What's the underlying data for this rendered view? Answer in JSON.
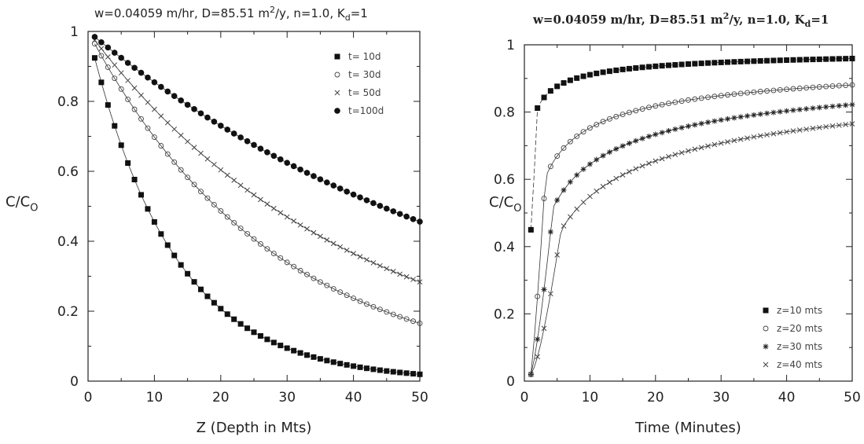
{
  "chart_data": [
    {
      "type": "line",
      "title_parts": [
        "w=0.04059 m/hr, D=85.51 m",
        "2",
        "/y, n=1.0, K",
        "d",
        "=1"
      ],
      "xlabel": "Z (Depth in Mts)",
      "ylabel_main": "C/C",
      "ylabel_sub": "O",
      "xlim": [
        0,
        50
      ],
      "ylim": [
        0,
        1
      ],
      "xticks": [
        "0",
        "10",
        "20",
        "30",
        "40",
        "50"
      ],
      "yticks": [
        "0",
        "0.2",
        "0.4",
        "0.6",
        "0.8",
        "1"
      ],
      "legend_position": "top-right",
      "grid": false,
      "series": [
        {
          "name": "t= 10d",
          "marker": "square",
          "k": 0.0787
        },
        {
          "name": "t= 30d",
          "marker": "circle",
          "k": 0.036
        },
        {
          "name": "t= 50d",
          "marker": "x",
          "k": 0.0252
        },
        {
          "name": "t=100d",
          "marker": "dot",
          "k": 0.0157
        }
      ],
      "x_values": [
        1,
        2,
        3,
        4,
        5,
        6,
        7,
        8,
        9,
        10,
        11,
        12,
        13,
        14,
        15,
        16,
        17,
        18,
        19,
        20,
        21,
        22,
        23,
        24,
        25,
        26,
        27,
        28,
        29,
        30,
        31,
        32,
        33,
        34,
        35,
        36,
        37,
        38,
        39,
        40,
        41,
        42,
        43,
        44,
        45,
        46,
        47,
        48,
        49,
        50
      ],
      "endpoints": {
        "t= 10d": 0.02,
        "t= 30d": 0.17,
        "t= 50d": 0.29,
        "t=100d": 0.46
      }
    },
    {
      "type": "line",
      "title": "w=0.04059 m/hr, D=85.51 m2/y, n=1.0, Kd=1",
      "title_parts": [
        "w=0.04059 m/hr, D=85.51 m",
        "2",
        "/y, n=1.0, K",
        "d",
        "=1"
      ],
      "xlabel": "Time (Minutes)",
      "ylabel_main": "C/C",
      "ylabel_sub": "O",
      "xlim": [
        0,
        50
      ],
      "ylim": [
        0,
        1
      ],
      "xticks": [
        "0",
        "10",
        "20",
        "30",
        "40",
        "50"
      ],
      "yticks": [
        "0",
        "0.2",
        "0.4",
        "0.6",
        "0.8",
        "1"
      ],
      "legend_position": "bottom-right",
      "grid": false,
      "series": [
        {
          "name": "z=10 mts",
          "marker": "square",
          "a": 0.0417
        },
        {
          "name": "z=20 mts",
          "marker": "circle",
          "a": 0.127
        },
        {
          "name": "z=30 mts",
          "marker": "asterisk",
          "a": 0.196
        },
        {
          "name": "z=40 mts",
          "marker": "x",
          "a": 0.268
        }
      ],
      "x_values": [
        1,
        2,
        3,
        4,
        5,
        6,
        7,
        8,
        9,
        10,
        11,
        12,
        13,
        14,
        15,
        16,
        17,
        18,
        19,
        20,
        21,
        22,
        23,
        24,
        25,
        26,
        27,
        28,
        29,
        30,
        31,
        32,
        33,
        34,
        35,
        36,
        37,
        38,
        39,
        40,
        41,
        42,
        43,
        44,
        45,
        46,
        47,
        48,
        49,
        50
      ],
      "endpoints": {
        "z=10 mts": 0.94,
        "z=20 mts": 0.88,
        "z=30 mts": 0.82,
        "z=40 mts": 0.77
      }
    }
  ]
}
